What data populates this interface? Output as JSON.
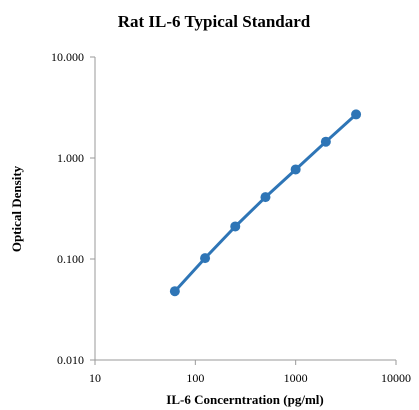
{
  "chart_data": {
    "type": "scatter",
    "title": "Rat IL-6 Typical Standard",
    "xlabel": "IL-6 Concerntration (pg/ml)",
    "ylabel": "Optical Density",
    "x_scale": "log",
    "y_scale": "log",
    "xlim": [
      10,
      10000
    ],
    "ylim": [
      0.01,
      10
    ],
    "x_ticks": [
      10,
      100,
      1000,
      10000
    ],
    "x_tick_labels": [
      "10",
      "100",
      "1000",
      "10000"
    ],
    "y_ticks": [
      0.01,
      0.1,
      1,
      10
    ],
    "y_tick_labels": [
      "0.010",
      "0.100",
      "1.000",
      "10.000"
    ],
    "grid": false,
    "legend": "none",
    "series": [
      {
        "x": [
          62.5,
          125,
          250,
          500,
          1000,
          2000,
          4000
        ],
        "y": [
          0.048,
          0.102,
          0.21,
          0.41,
          0.77,
          1.45,
          2.7
        ],
        "color": "#2e75b6",
        "marker": "circle",
        "line": true
      }
    ]
  }
}
